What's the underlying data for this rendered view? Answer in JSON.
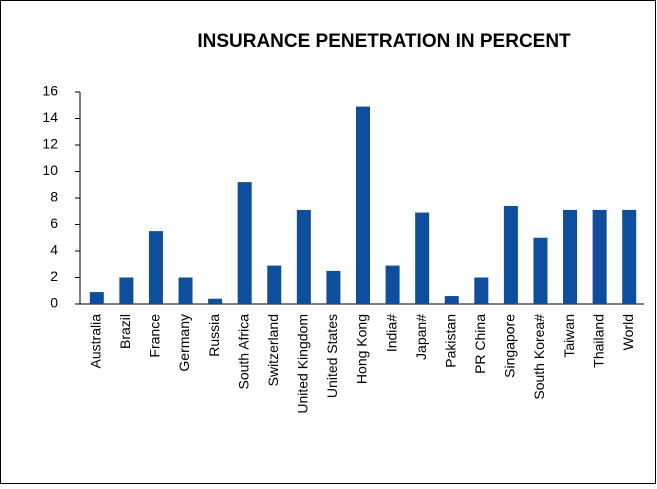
{
  "chart_data": {
    "type": "bar",
    "title": "INSURANCE PENETRATION IN PERCENT",
    "categories": [
      "Australia",
      "Brazil",
      "France",
      "Germany",
      "Russia",
      "South Africa",
      "Switzerland",
      "United Kingdom",
      "United States",
      "Hong Kong",
      "India#",
      "Japan#",
      "Pakistan",
      "PR China",
      "Singapore",
      "South Korea#",
      "Taiwan",
      "Thailand",
      "World"
    ],
    "values": [
      0.9,
      2.0,
      5.5,
      2.0,
      0.4,
      9.2,
      2.9,
      7.1,
      2.5,
      14.9,
      2.9,
      6.9,
      0.6,
      2.0,
      7.4,
      5.0,
      7.1,
      7.1,
      7.1
    ],
    "color": "#0d4e9e",
    "ylim": [
      0,
      16
    ],
    "yticks": [
      0,
      2,
      4,
      6,
      8,
      10,
      12,
      14,
      16
    ],
    "grid": false
  }
}
